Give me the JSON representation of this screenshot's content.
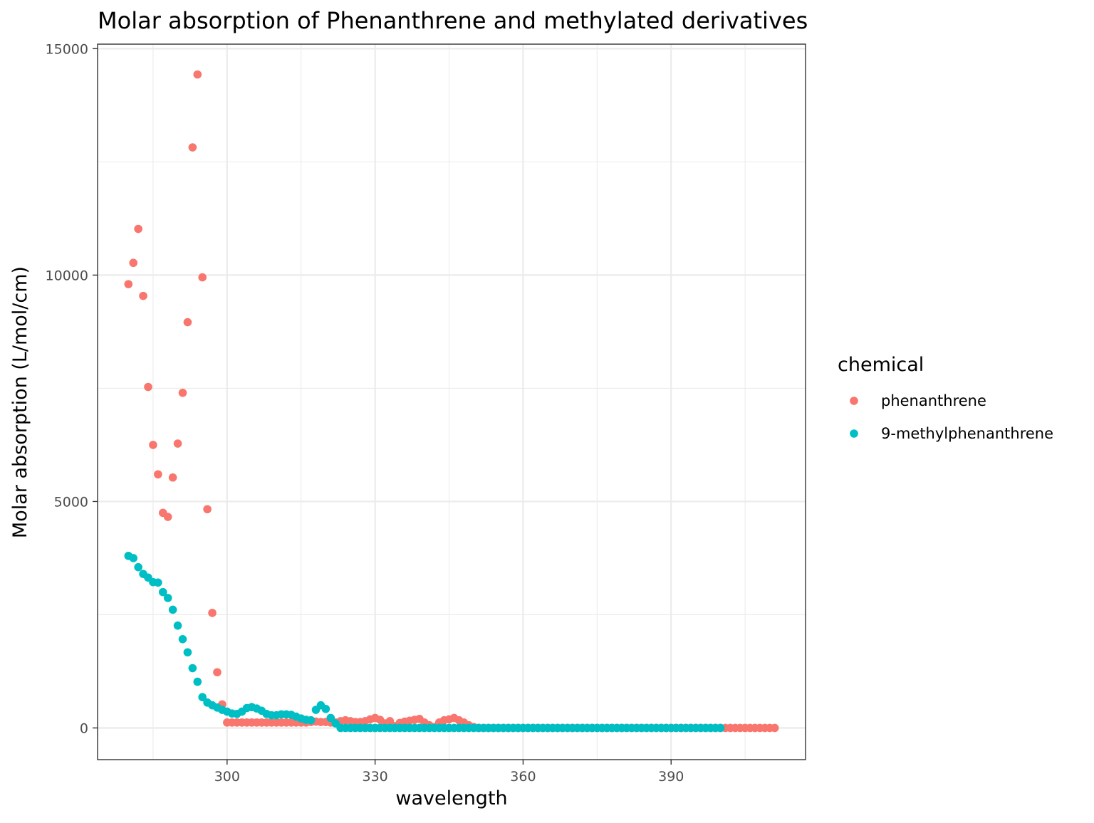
{
  "chart_data": {
    "type": "scatter",
    "title": "Molar absorption of Phenanthrene and methylated derivatives",
    "xlabel": "wavelength",
    "ylabel": "Molar absorption (L/mol/cm)",
    "xlim": [
      273.75,
      417.25
    ],
    "ylim": [
      -700,
      15100
    ],
    "x_ticks": [
      300,
      330,
      360,
      390
    ],
    "y_ticks": [
      0,
      5000,
      10000,
      15000
    ],
    "grid": true,
    "legend_position": "right",
    "legend_title": "chemical",
    "series": [
      {
        "name": "phenanthrene",
        "color": "#F8766D",
        "points": [
          [
            280,
            9800
          ],
          [
            281,
            10270
          ],
          [
            282,
            11020
          ],
          [
            283,
            9540
          ],
          [
            284,
            7530
          ],
          [
            285,
            6250
          ],
          [
            286,
            5600
          ],
          [
            287,
            4750
          ],
          [
            288,
            4660
          ],
          [
            289,
            5530
          ],
          [
            290,
            6280
          ],
          [
            291,
            7400
          ],
          [
            292,
            8960
          ],
          [
            293,
            12820
          ],
          [
            294,
            14430
          ],
          [
            295,
            9950
          ],
          [
            296,
            4830
          ],
          [
            297,
            2540
          ],
          [
            298,
            1230
          ],
          [
            299,
            520
          ],
          [
            300,
            120
          ],
          [
            301,
            120
          ],
          [
            302,
            120
          ],
          [
            303,
            120
          ],
          [
            304,
            120
          ],
          [
            305,
            120
          ],
          [
            306,
            120
          ],
          [
            307,
            120
          ],
          [
            308,
            120
          ],
          [
            309,
            120
          ],
          [
            310,
            120
          ],
          [
            311,
            120
          ],
          [
            312,
            120
          ],
          [
            313,
            120
          ],
          [
            314,
            120
          ],
          [
            315,
            120
          ],
          [
            316,
            120
          ],
          [
            317,
            130
          ],
          [
            318,
            140
          ],
          [
            319,
            130
          ],
          [
            320,
            130
          ],
          [
            321,
            120
          ],
          [
            322,
            120
          ],
          [
            323,
            150
          ],
          [
            324,
            170
          ],
          [
            325,
            150
          ],
          [
            326,
            130
          ],
          [
            327,
            130
          ],
          [
            328,
            150
          ],
          [
            329,
            190
          ],
          [
            330,
            220
          ],
          [
            331,
            180
          ],
          [
            332,
            100
          ],
          [
            333,
            150
          ],
          [
            334,
            40
          ],
          [
            335,
            110
          ],
          [
            336,
            140
          ],
          [
            337,
            160
          ],
          [
            338,
            180
          ],
          [
            339,
            200
          ],
          [
            340,
            120
          ],
          [
            341,
            60
          ],
          [
            342,
            20
          ],
          [
            343,
            120
          ],
          [
            344,
            170
          ],
          [
            345,
            190
          ],
          [
            346,
            220
          ],
          [
            347,
            170
          ],
          [
            348,
            120
          ],
          [
            349,
            60
          ],
          [
            350,
            20
          ],
          [
            351,
            0
          ],
          [
            352,
            0
          ],
          [
            353,
            0
          ],
          [
            354,
            0
          ],
          [
            355,
            0
          ],
          [
            356,
            0
          ],
          [
            357,
            0
          ],
          [
            358,
            0
          ],
          [
            359,
            0
          ],
          [
            360,
            0
          ],
          [
            361,
            0
          ],
          [
            362,
            0
          ],
          [
            363,
            0
          ],
          [
            364,
            0
          ],
          [
            365,
            0
          ],
          [
            366,
            0
          ],
          [
            367,
            0
          ],
          [
            368,
            0
          ],
          [
            369,
            0
          ],
          [
            370,
            0
          ],
          [
            371,
            0
          ],
          [
            372,
            0
          ],
          [
            373,
            0
          ],
          [
            374,
            0
          ],
          [
            375,
            0
          ],
          [
            376,
            0
          ],
          [
            377,
            0
          ],
          [
            378,
            0
          ],
          [
            379,
            0
          ],
          [
            380,
            0
          ],
          [
            381,
            0
          ],
          [
            382,
            0
          ],
          [
            383,
            0
          ],
          [
            384,
            0
          ],
          [
            385,
            0
          ],
          [
            386,
            0
          ],
          [
            387,
            0
          ],
          [
            388,
            0
          ],
          [
            389,
            0
          ],
          [
            390,
            0
          ],
          [
            391,
            0
          ],
          [
            392,
            0
          ],
          [
            393,
            0
          ],
          [
            394,
            0
          ],
          [
            395,
            0
          ],
          [
            396,
            0
          ],
          [
            397,
            0
          ],
          [
            398,
            0
          ],
          [
            399,
            0
          ],
          [
            400,
            0
          ],
          [
            401,
            0
          ],
          [
            402,
            0
          ],
          [
            403,
            0
          ],
          [
            404,
            0
          ],
          [
            405,
            0
          ],
          [
            406,
            0
          ],
          [
            407,
            0
          ],
          [
            408,
            0
          ],
          [
            409,
            0
          ],
          [
            410,
            0
          ],
          [
            411,
            0
          ]
        ]
      },
      {
        "name": "9-methylphenanthrene",
        "color": "#00BFC4",
        "points": [
          [
            280,
            3800
          ],
          [
            281,
            3750
          ],
          [
            282,
            3550
          ],
          [
            283,
            3400
          ],
          [
            284,
            3320
          ],
          [
            285,
            3220
          ],
          [
            286,
            3210
          ],
          [
            287,
            3000
          ],
          [
            288,
            2870
          ],
          [
            289,
            2610
          ],
          [
            290,
            2260
          ],
          [
            291,
            1960
          ],
          [
            292,
            1670
          ],
          [
            293,
            1320
          ],
          [
            294,
            1020
          ],
          [
            295,
            680
          ],
          [
            296,
            560
          ],
          [
            297,
            500
          ],
          [
            298,
            450
          ],
          [
            299,
            400
          ],
          [
            300,
            360
          ],
          [
            301,
            320
          ],
          [
            302,
            310
          ],
          [
            303,
            360
          ],
          [
            304,
            440
          ],
          [
            305,
            460
          ],
          [
            306,
            430
          ],
          [
            307,
            380
          ],
          [
            308,
            310
          ],
          [
            309,
            280
          ],
          [
            310,
            280
          ],
          [
            311,
            300
          ],
          [
            312,
            300
          ],
          [
            313,
            290
          ],
          [
            314,
            250
          ],
          [
            315,
            210
          ],
          [
            316,
            180
          ],
          [
            317,
            170
          ],
          [
            318,
            400
          ],
          [
            319,
            500
          ],
          [
            320,
            420
          ],
          [
            321,
            220
          ],
          [
            322,
            100
          ],
          [
            323,
            0
          ],
          [
            324,
            0
          ],
          [
            325,
            0
          ],
          [
            326,
            0
          ],
          [
            327,
            0
          ],
          [
            328,
            0
          ],
          [
            329,
            0
          ],
          [
            330,
            0
          ],
          [
            331,
            0
          ],
          [
            332,
            0
          ],
          [
            333,
            0
          ],
          [
            334,
            0
          ],
          [
            335,
            0
          ],
          [
            336,
            0
          ],
          [
            337,
            0
          ],
          [
            338,
            0
          ],
          [
            339,
            0
          ],
          [
            340,
            0
          ],
          [
            341,
            0
          ],
          [
            342,
            0
          ],
          [
            343,
            0
          ],
          [
            344,
            0
          ],
          [
            345,
            0
          ],
          [
            346,
            0
          ],
          [
            347,
            0
          ],
          [
            348,
            0
          ],
          [
            349,
            0
          ],
          [
            350,
            0
          ],
          [
            351,
            0
          ],
          [
            352,
            0
          ],
          [
            353,
            0
          ],
          [
            354,
            0
          ],
          [
            355,
            0
          ],
          [
            356,
            0
          ],
          [
            357,
            0
          ],
          [
            358,
            0
          ],
          [
            359,
            0
          ],
          [
            360,
            0
          ],
          [
            361,
            0
          ],
          [
            362,
            0
          ],
          [
            363,
            0
          ],
          [
            364,
            0
          ],
          [
            365,
            0
          ],
          [
            366,
            0
          ],
          [
            367,
            0
          ],
          [
            368,
            0
          ],
          [
            369,
            0
          ],
          [
            370,
            0
          ],
          [
            371,
            0
          ],
          [
            372,
            0
          ],
          [
            373,
            0
          ],
          [
            374,
            0
          ],
          [
            375,
            0
          ],
          [
            376,
            0
          ],
          [
            377,
            0
          ],
          [
            378,
            0
          ],
          [
            379,
            0
          ],
          [
            380,
            0
          ],
          [
            381,
            0
          ],
          [
            382,
            0
          ],
          [
            383,
            0
          ],
          [
            384,
            0
          ],
          [
            385,
            0
          ],
          [
            386,
            0
          ],
          [
            387,
            0
          ],
          [
            388,
            0
          ],
          [
            389,
            0
          ],
          [
            390,
            0
          ],
          [
            391,
            0
          ],
          [
            392,
            0
          ],
          [
            393,
            0
          ],
          [
            394,
            0
          ],
          [
            395,
            0
          ],
          [
            396,
            0
          ],
          [
            397,
            0
          ],
          [
            398,
            0
          ],
          [
            399,
            0
          ],
          [
            400,
            0
          ]
        ]
      }
    ]
  }
}
